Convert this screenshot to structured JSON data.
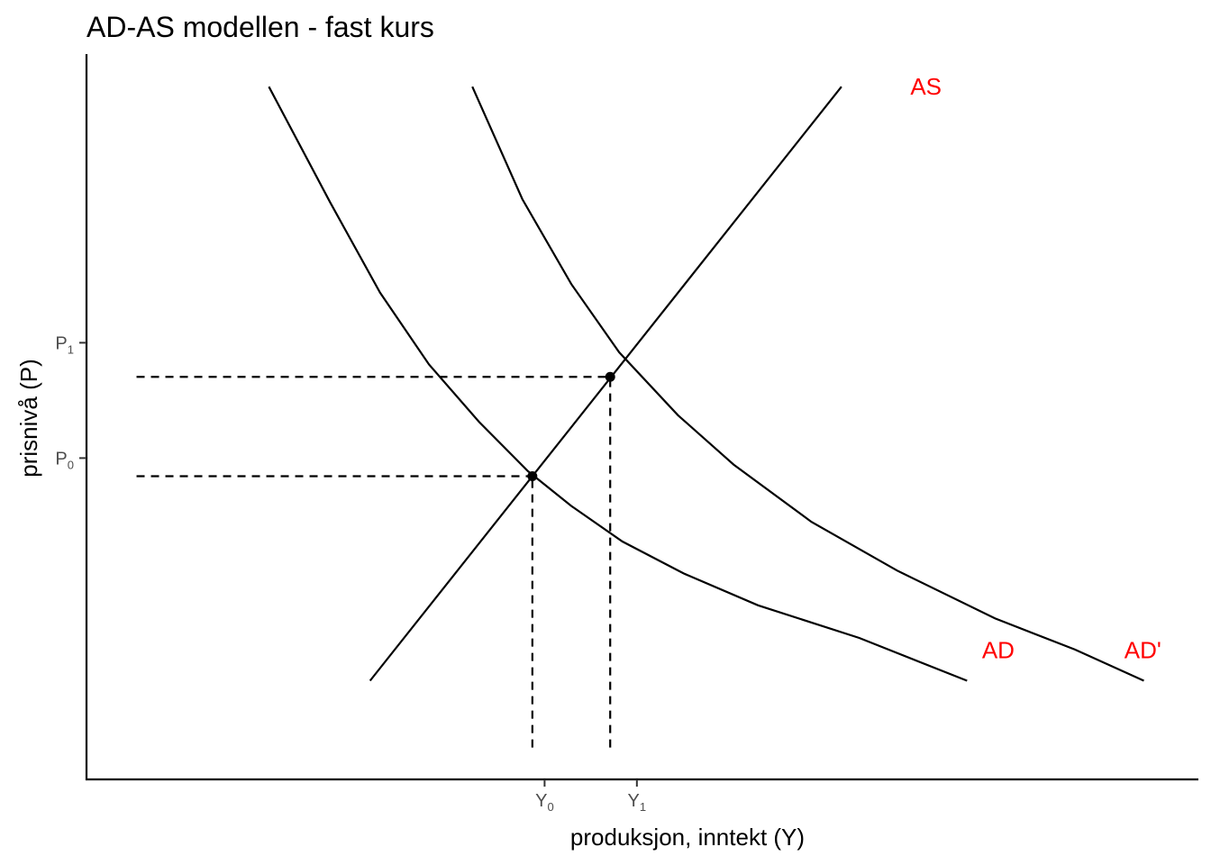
{
  "chart_data": {
    "type": "line",
    "title": "AD-AS modellen - fast kurs",
    "xlabel": "produksjon, inntekt (Y)",
    "ylabel": "prisnivå (P)",
    "xlim": [
      0,
      10
    ],
    "ylim": [
      0,
      10
    ],
    "x_ticks": [
      {
        "base": "Y",
        "sub": "0",
        "value": 4.12
      },
      {
        "base": "Y",
        "sub": "1",
        "value": 4.95
      }
    ],
    "y_ticks": [
      {
        "base": "P",
        "sub": "0",
        "value": 4.43
      },
      {
        "base": "P",
        "sub": "1",
        "value": 6.02
      }
    ],
    "series": [
      {
        "name": "AS",
        "type": "line",
        "points": [
          [
            2.55,
            1.36
          ],
          [
            6.79,
            9.55
          ]
        ]
      },
      {
        "name": "AD",
        "type": "curve",
        "points": [
          [
            1.64,
            9.55
          ],
          [
            2.19,
            7.96
          ],
          [
            2.64,
            6.71
          ],
          [
            3.08,
            5.72
          ],
          [
            3.53,
            4.93
          ],
          [
            3.97,
            4.25
          ],
          [
            4.36,
            3.77
          ],
          [
            4.82,
            3.28
          ],
          [
            5.37,
            2.84
          ],
          [
            6.04,
            2.4
          ],
          [
            6.95,
            1.95
          ],
          [
            7.92,
            1.36
          ]
        ]
      },
      {
        "name": "AD'",
        "type": "curve",
        "points": [
          [
            3.47,
            9.55
          ],
          [
            3.92,
            8.0
          ],
          [
            4.36,
            6.83
          ],
          [
            4.79,
            5.89
          ],
          [
            5.32,
            5.02
          ],
          [
            5.82,
            4.34
          ],
          [
            6.52,
            3.55
          ],
          [
            7.29,
            2.88
          ],
          [
            8.17,
            2.22
          ],
          [
            8.89,
            1.79
          ],
          [
            9.51,
            1.36
          ]
        ]
      }
    ],
    "points": [
      {
        "x": 4.01,
        "y": 4.18
      },
      {
        "x": 4.71,
        "y": 5.55
      }
    ],
    "guides": {
      "horizontal": [
        {
          "y": 4.18,
          "x_from": 0.45,
          "x_to": 4.01
        },
        {
          "y": 5.55,
          "x_from": 0.45,
          "x_to": 4.71
        }
      ],
      "vertical": [
        {
          "x": 4.01,
          "y_from": 0.44,
          "y_to": 4.18
        },
        {
          "x": 4.71,
          "y_from": 0.44,
          "y_to": 5.55
        }
      ]
    },
    "curve_labels": [
      {
        "text": "AS",
        "x": 7.55,
        "y": 9.55,
        "color": "#ff0000"
      },
      {
        "text": "AD",
        "x": 8.2,
        "y": 1.78,
        "color": "#ff0000"
      },
      {
        "text": "AD'",
        "x": 9.5,
        "y": 1.78,
        "color": "#ff0000"
      }
    ],
    "grid": false,
    "legend": "none"
  }
}
